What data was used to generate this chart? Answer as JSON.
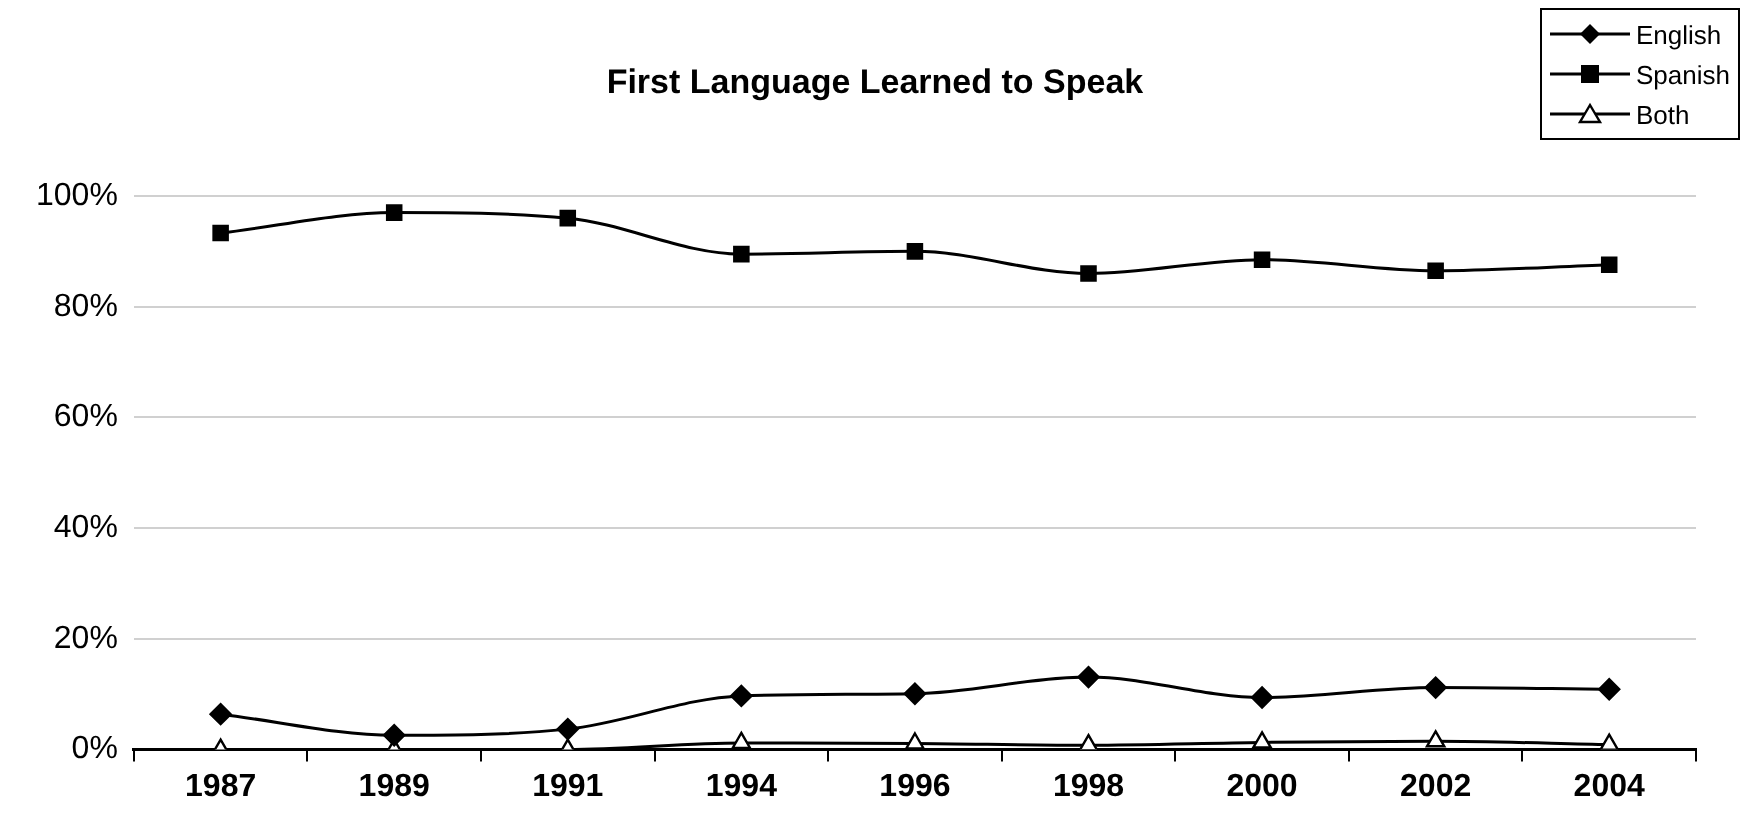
{
  "chart_data": {
    "type": "line",
    "title": "First Language Learned to Speak",
    "categories": [
      "1987",
      "1989",
      "1991",
      "1994",
      "1996",
      "1998",
      "2000",
      "2002",
      "2004"
    ],
    "series": [
      {
        "name": "English",
        "color": "#000000",
        "marker": "diamond",
        "values": [
          6.4,
          2.6,
          3.7,
          9.7,
          10.1,
          13.1,
          9.4,
          11.2,
          10.9
        ]
      },
      {
        "name": "Spanish",
        "color": "#000000",
        "marker": "square",
        "values": [
          93.3,
          97,
          96,
          89.5,
          90,
          86,
          88.5,
          86.5,
          87.6
        ]
      },
      {
        "name": "Both",
        "color": "#000000",
        "marker": "triangle",
        "values": [
          0,
          0,
          0,
          1.2,
          1.1,
          0.8,
          1.3,
          1.5,
          0.9
        ]
      }
    ],
    "ylim": [
      0,
      100
    ],
    "yticks": [
      {
        "value": 0,
        "label": "0%"
      },
      {
        "value": 20,
        "label": "20%"
      },
      {
        "value": 40,
        "label": "40%"
      },
      {
        "value": 60,
        "label": "60%"
      },
      {
        "value": 80,
        "label": "80%"
      },
      {
        "value": 100,
        "label": "100%"
      }
    ],
    "grid": "y",
    "legend": "top right",
    "line_style": "solid"
  }
}
